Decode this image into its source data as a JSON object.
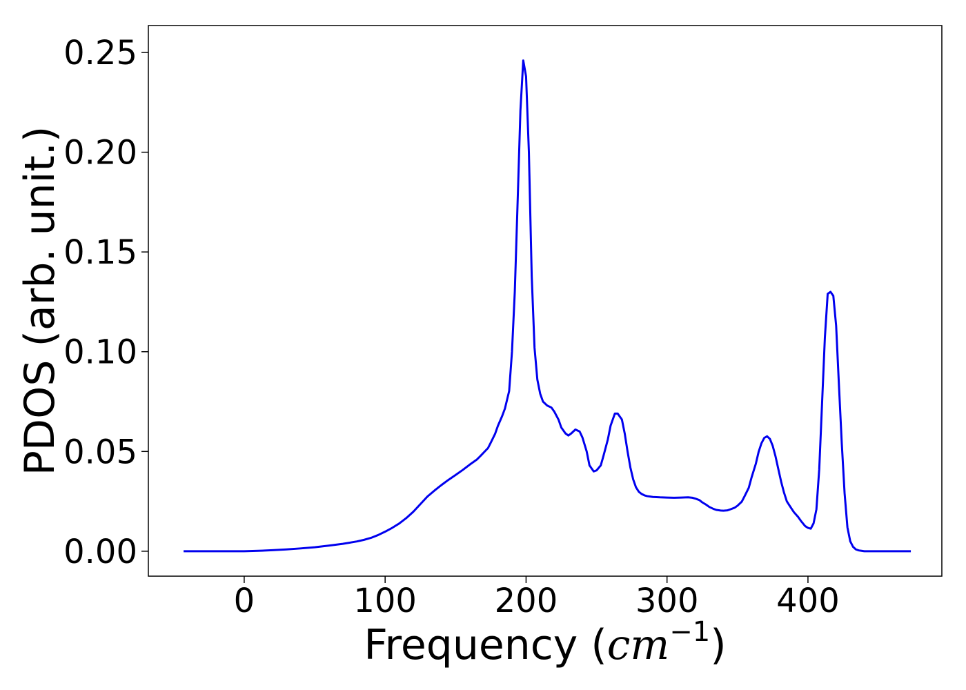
{
  "chart_data": {
    "type": "line",
    "title": "",
    "xlabel_text": "Frequency (",
    "xlabel_math": "cm",
    "xlabel_exponent": "−1",
    "xlabel_close": ")",
    "ylabel": "PDOS (arb. unit.)",
    "xlim": [
      -68,
      495
    ],
    "ylim": [
      -0.0125,
      0.2635
    ],
    "x_ticks": [
      0,
      100,
      200,
      300,
      400
    ],
    "x_tick_labels": [
      "0",
      "100",
      "200",
      "300",
      "400"
    ],
    "y_ticks": [
      0.0,
      0.05,
      0.1,
      0.15,
      0.2,
      0.25
    ],
    "y_tick_labels": [
      "0.00",
      "0.05",
      "0.10",
      "0.15",
      "0.20",
      "0.25"
    ],
    "grid": false,
    "legend": "none",
    "series": [
      {
        "color": "#0000ee",
        "x": [
          -43,
          0,
          10,
          20,
          30,
          40,
          50,
          60,
          70,
          80,
          85,
          90,
          95,
          100,
          105,
          110,
          115,
          120,
          125,
          130,
          135,
          140,
          145,
          150,
          155,
          160,
          165,
          168,
          170,
          173,
          175,
          178,
          180,
          183,
          185,
          188,
          190,
          192,
          194,
          196,
          198,
          200,
          202,
          204,
          206,
          208,
          210,
          212,
          215,
          218,
          220,
          223,
          225,
          228,
          230,
          232,
          235,
          238,
          240,
          243,
          245,
          248,
          250,
          253,
          255,
          258,
          260,
          263,
          265,
          268,
          270,
          272,
          274,
          276,
          278,
          280,
          282,
          284,
          286,
          288,
          290,
          295,
          300,
          305,
          310,
          315,
          318,
          320,
          323,
          325,
          328,
          330,
          333,
          335,
          338,
          340,
          343,
          345,
          348,
          350,
          353,
          355,
          358,
          360,
          363,
          365,
          367,
          369,
          371,
          373,
          375,
          377,
          379,
          381,
          383,
          385,
          388,
          390,
          393,
          395,
          398,
          400,
          402,
          404,
          406,
          408,
          410,
          412,
          414,
          416,
          418,
          420,
          422,
          424,
          426,
          428,
          430,
          432,
          434,
          436,
          438,
          440,
          450,
          460,
          470,
          473
        ],
        "y": [
          0.0,
          0.0,
          0.0002,
          0.0005,
          0.0009,
          0.0014,
          0.002,
          0.0028,
          0.0037,
          0.0049,
          0.0057,
          0.0067,
          0.0081,
          0.0098,
          0.0117,
          0.0139,
          0.0166,
          0.0198,
          0.0236,
          0.0274,
          0.0304,
          0.0332,
          0.0358,
          0.0382,
          0.0407,
          0.0434,
          0.0459,
          0.048,
          0.0495,
          0.0517,
          0.0545,
          0.0588,
          0.0628,
          0.0677,
          0.0715,
          0.0803,
          0.1,
          0.13,
          0.175,
          0.221,
          0.246,
          0.238,
          0.2,
          0.138,
          0.102,
          0.086,
          0.079,
          0.075,
          0.073,
          0.072,
          0.07,
          0.066,
          0.062,
          0.059,
          0.058,
          0.059,
          0.061,
          0.06,
          0.057,
          0.05,
          0.043,
          0.04,
          0.0405,
          0.043,
          0.048,
          0.056,
          0.063,
          0.069,
          0.069,
          0.066,
          0.059,
          0.05,
          0.042,
          0.036,
          0.032,
          0.0298,
          0.0287,
          0.028,
          0.0276,
          0.0274,
          0.0272,
          0.027,
          0.0269,
          0.0268,
          0.0269,
          0.027,
          0.0268,
          0.0264,
          0.0256,
          0.0245,
          0.0232,
          0.0222,
          0.0212,
          0.0207,
          0.0204,
          0.0203,
          0.0205,
          0.021,
          0.0218,
          0.0228,
          0.0248,
          0.0275,
          0.0318,
          0.037,
          0.0438,
          0.0498,
          0.0541,
          0.0568,
          0.0576,
          0.0563,
          0.0528,
          0.0475,
          0.0411,
          0.0348,
          0.0294,
          0.025,
          0.0217,
          0.0196,
          0.0172,
          0.0152,
          0.0126,
          0.0117,
          0.0113,
          0.014,
          0.021,
          0.041,
          0.074,
          0.107,
          0.129,
          0.13,
          0.128,
          0.113,
          0.083,
          0.054,
          0.029,
          0.012,
          0.005,
          0.0022,
          0.0009,
          0.0004,
          0.0002,
          0.0,
          0.0,
          0.0,
          0.0,
          0.0
        ]
      }
    ]
  }
}
